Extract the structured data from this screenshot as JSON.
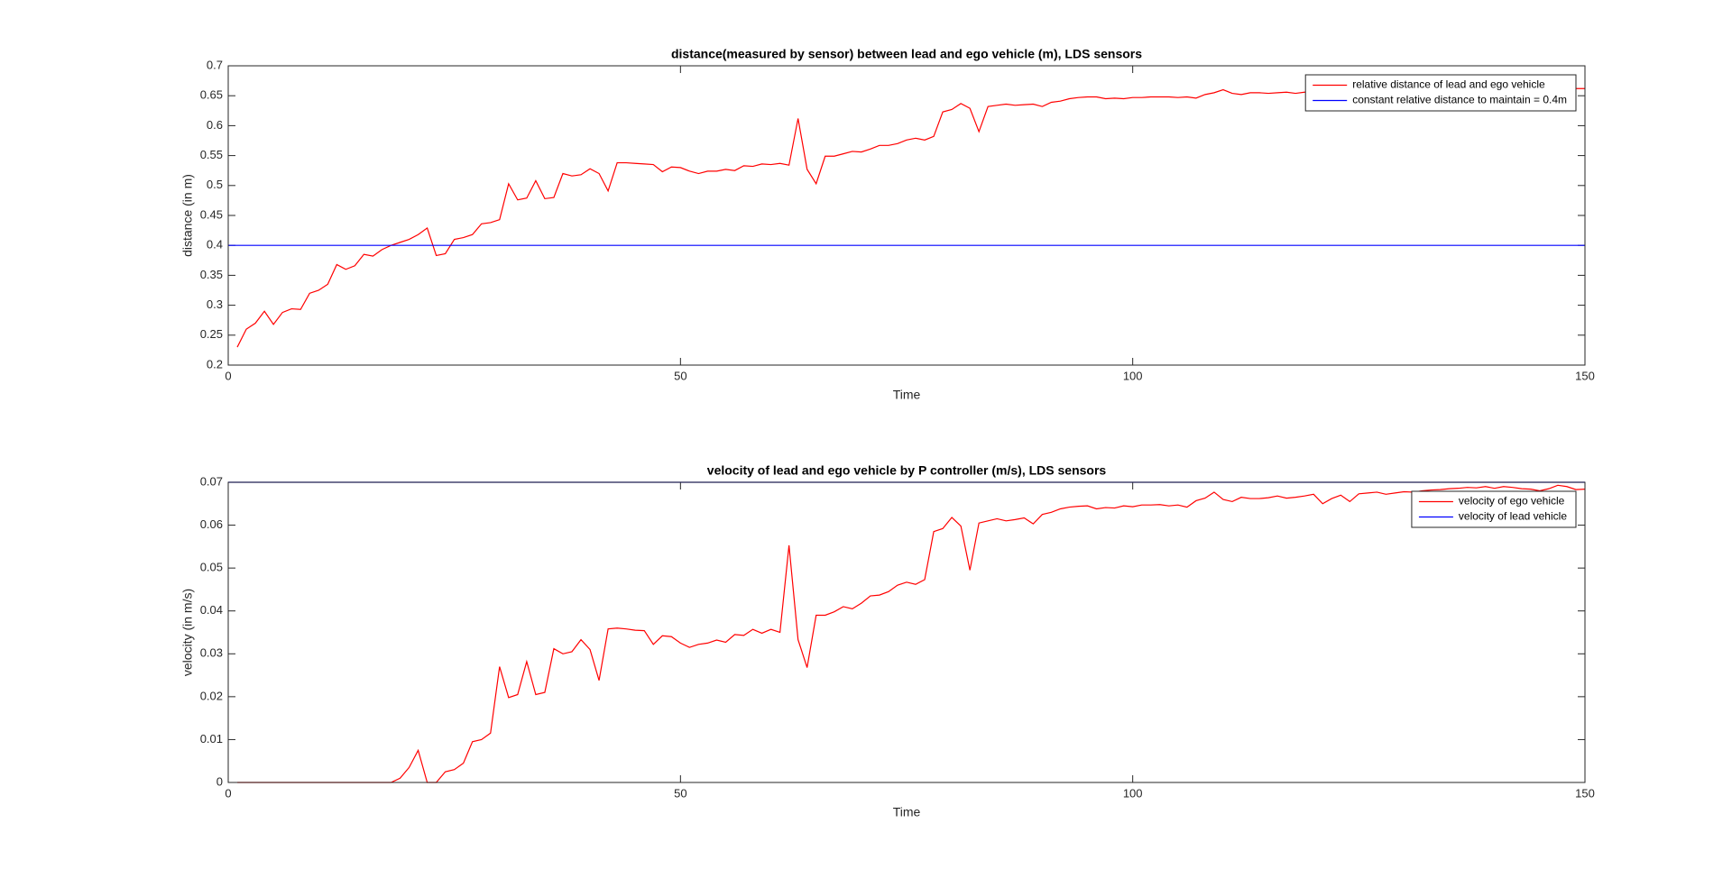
{
  "chart_data": [
    {
      "type": "line",
      "title": "distance(measured by sensor) between lead and ego vehicle (m), LDS sensors",
      "xlabel": "Time",
      "ylabel": "distance (in m)",
      "xlim": [
        0,
        150
      ],
      "xticks": [
        0,
        50,
        100,
        150
      ],
      "ylim": [
        0.2,
        0.7
      ],
      "yticks": [
        0.2,
        0.25,
        0.3,
        0.35,
        0.4,
        0.45,
        0.5,
        0.55,
        0.6,
        0.65,
        0.7
      ],
      "legend": "northeast",
      "x": [
        1,
        2,
        3,
        4,
        5,
        6,
        7,
        8,
        9,
        10,
        11,
        12,
        13,
        14,
        15,
        16,
        17,
        18,
        19,
        20,
        21,
        22,
        23,
        24,
        25,
        26,
        27,
        28,
        29,
        30,
        31,
        32,
        33,
        34,
        35,
        36,
        37,
        38,
        39,
        40,
        41,
        42,
        43,
        44,
        45,
        46,
        47,
        48,
        49,
        50,
        51,
        52,
        53,
        54,
        55,
        56,
        57,
        58,
        59,
        60,
        61,
        62,
        63,
        64,
        65,
        66,
        67,
        68,
        69,
        70,
        71,
        72,
        73,
        74,
        75,
        76,
        77,
        78,
        79,
        80,
        81,
        82,
        83,
        84,
        85,
        86,
        87,
        88,
        89,
        90,
        91,
        92,
        93,
        94,
        95,
        96,
        97,
        98,
        99,
        100,
        101,
        102,
        103,
        104,
        105,
        106,
        107,
        108,
        109,
        110,
        111,
        112,
        113,
        114,
        115,
        116,
        117,
        118,
        119,
        120,
        121,
        122,
        123,
        124,
        125,
        126,
        127,
        128,
        129,
        130,
        131,
        132,
        133,
        134,
        135,
        136,
        137,
        138,
        139,
        140,
        141,
        142,
        143,
        144,
        145,
        146,
        147,
        148,
        149,
        150
      ],
      "series": [
        {
          "name": "relative distance of lead and ego vehicle",
          "color": "#ff0000",
          "values": [
            0.23,
            0.26,
            0.27,
            0.29,
            0.268,
            0.288,
            0.294,
            0.293,
            0.32,
            0.325,
            0.335,
            0.368,
            0.36,
            0.366,
            0.385,
            0.382,
            0.393,
            0.4,
            0.405,
            0.41,
            0.418,
            0.429,
            0.383,
            0.386,
            0.41,
            0.413,
            0.418,
            0.436,
            0.438,
            0.443,
            0.503,
            0.476,
            0.479,
            0.508,
            0.478,
            0.48,
            0.52,
            0.516,
            0.518,
            0.528,
            0.52,
            0.491,
            0.538,
            0.538,
            0.537,
            0.536,
            0.535,
            0.523,
            0.531,
            0.53,
            0.524,
            0.52,
            0.524,
            0.524,
            0.527,
            0.525,
            0.533,
            0.532,
            0.536,
            0.535,
            0.537,
            0.534,
            0.612,
            0.527,
            0.503,
            0.549,
            0.549,
            0.553,
            0.557,
            0.556,
            0.561,
            0.567,
            0.567,
            0.57,
            0.576,
            0.579,
            0.576,
            0.582,
            0.623,
            0.627,
            0.637,
            0.629,
            0.59,
            0.632,
            0.634,
            0.636,
            0.634,
            0.635,
            0.636,
            0.632,
            0.639,
            0.641,
            0.645,
            0.647,
            0.648,
            0.648,
            0.645,
            0.646,
            0.645,
            0.647,
            0.647,
            0.648,
            0.648,
            0.648,
            0.647,
            0.648,
            0.646,
            0.652,
            0.655,
            0.66,
            0.654,
            0.652,
            0.655,
            0.655,
            0.654,
            0.655,
            0.656,
            0.654,
            0.656,
            0.656,
            0.655,
            0.657,
            0.656,
            0.658,
            0.657,
            0.658,
            0.659,
            0.658,
            0.659,
            0.66,
            0.659,
            0.66,
            0.661,
            0.66,
            0.661,
            0.66,
            0.661,
            0.662,
            0.661,
            0.662,
            0.661,
            0.662,
            0.663,
            0.662,
            0.663,
            0.662,
            0.663,
            0.662,
            0.662,
            0.662
          ]
        },
        {
          "name": "constant relative distance to maintain = 0.4m",
          "color": "#0000ff",
          "x": [
            0,
            150
          ],
          "values": [
            0.4,
            0.4
          ]
        }
      ]
    },
    {
      "type": "line",
      "title": "velocity of lead and ego vehicle by P controller (m/s), LDS sensors",
      "xlabel": "Time",
      "ylabel": "velocity (in m/s)",
      "xlim": [
        0,
        150
      ],
      "xticks": [
        0,
        50,
        100,
        150
      ],
      "ylim": [
        0,
        0.07
      ],
      "yticks": [
        0,
        0.01,
        0.02,
        0.03,
        0.04,
        0.05,
        0.06,
        0.07
      ],
      "legend": "northeast",
      "x": [
        1,
        2,
        3,
        4,
        5,
        6,
        7,
        8,
        9,
        10,
        11,
        12,
        13,
        14,
        15,
        16,
        17,
        18,
        19,
        20,
        21,
        22,
        23,
        24,
        25,
        26,
        27,
        28,
        29,
        30,
        31,
        32,
        33,
        34,
        35,
        36,
        37,
        38,
        39,
        40,
        41,
        42,
        43,
        44,
        45,
        46,
        47,
        48,
        49,
        50,
        51,
        52,
        53,
        54,
        55,
        56,
        57,
        58,
        59,
        60,
        61,
        62,
        63,
        64,
        65,
        66,
        67,
        68,
        69,
        70,
        71,
        72,
        73,
        74,
        75,
        76,
        77,
        78,
        79,
        80,
        81,
        82,
        83,
        84,
        85,
        86,
        87,
        88,
        89,
        90,
        91,
        92,
        93,
        94,
        95,
        96,
        97,
        98,
        99,
        100,
        101,
        102,
        103,
        104,
        105,
        106,
        107,
        108,
        109,
        110,
        111,
        112,
        113,
        114,
        115,
        116,
        117,
        118,
        119,
        120,
        121,
        122,
        123,
        124,
        125,
        126,
        127,
        128,
        129,
        130,
        131,
        132,
        133,
        134,
        135,
        136,
        137,
        138,
        139,
        140,
        141,
        142,
        143,
        144,
        145,
        146,
        147,
        148,
        149,
        150
      ],
      "series": [
        {
          "name": "velocity of ego vehicle",
          "color": "#ff0000",
          "values": [
            0,
            0,
            0,
            0,
            0,
            0,
            0,
            0,
            0,
            0,
            0,
            0,
            0,
            0,
            0,
            0,
            0,
            0,
            0.001,
            0.0035,
            0.0075,
            0,
            0,
            0.0025,
            0.003,
            0.0045,
            0.0095,
            0.01,
            0.0115,
            0.027,
            0.0198,
            0.0205,
            0.0282,
            0.0205,
            0.021,
            0.0312,
            0.03,
            0.0305,
            0.0333,
            0.031,
            0.0238,
            0.0358,
            0.036,
            0.0358,
            0.0355,
            0.0354,
            0.0322,
            0.0342,
            0.034,
            0.0325,
            0.0315,
            0.0322,
            0.0325,
            0.0332,
            0.0327,
            0.0345,
            0.0343,
            0.0357,
            0.0348,
            0.0357,
            0.035,
            0.0553,
            0.0333,
            0.0268,
            0.039,
            0.039,
            0.0398,
            0.041,
            0.0405,
            0.0418,
            0.0435,
            0.0437,
            0.0445,
            0.046,
            0.0467,
            0.0462,
            0.0473,
            0.0585,
            0.0592,
            0.0618,
            0.0598,
            0.0495,
            0.0605,
            0.061,
            0.0615,
            0.061,
            0.0613,
            0.0617,
            0.0603,
            0.0625,
            0.063,
            0.0638,
            0.0642,
            0.0644,
            0.0645,
            0.0638,
            0.0641,
            0.064,
            0.0645,
            0.0643,
            0.0647,
            0.0647,
            0.0648,
            0.0645,
            0.0647,
            0.0642,
            0.0657,
            0.0663,
            0.0677,
            0.066,
            0.0655,
            0.0665,
            0.0662,
            0.0662,
            0.0664,
            0.0668,
            0.0663,
            0.0665,
            0.0668,
            0.0672,
            0.065,
            0.0662,
            0.067,
            0.0655,
            0.0673,
            0.0675,
            0.0677,
            0.0672,
            0.0675,
            0.0678,
            0.0677,
            0.068,
            0.0682,
            0.0683,
            0.0685,
            0.0686,
            0.0688,
            0.0687,
            0.069,
            0.0686,
            0.069,
            0.0688,
            0.0685,
            0.0684,
            0.068,
            0.0685,
            0.0693,
            0.069,
            0.0683,
            0.0684
          ]
        },
        {
          "name": "velocity of lead vehicle",
          "color": "#0000ff",
          "x": [
            0,
            150
          ],
          "values": [
            0.07,
            0.07
          ]
        }
      ]
    }
  ]
}
